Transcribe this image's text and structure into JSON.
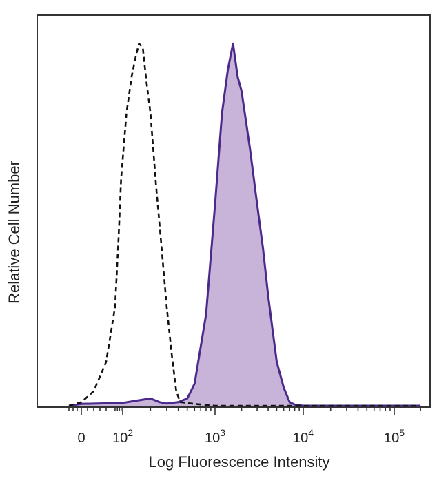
{
  "chart_data": {
    "type": "area",
    "title": "",
    "xlabel": "Log Fluorescence Intensity",
    "ylabel": "Relative Cell Number",
    "x_scale": "biexponential",
    "xlim": [
      -30,
      200000
    ],
    "ylim": [
      0,
      1
    ],
    "grid": false,
    "legend": "none",
    "x_ticks": [
      {
        "value": 0,
        "label": "0"
      },
      {
        "value": 100,
        "label": "10",
        "exp": "2"
      },
      {
        "value": 1000,
        "label": "10",
        "exp": "3"
      },
      {
        "value": 10000,
        "label": "10",
        "exp": "4"
      },
      {
        "value": 100000,
        "label": "10",
        "exp": "5"
      }
    ],
    "series": [
      {
        "style": "dashed-outline",
        "color": "#111111",
        "points": [
          [
            -30,
            0
          ],
          [
            0,
            0.01
          ],
          [
            20,
            0.04
          ],
          [
            40,
            0.12
          ],
          [
            60,
            0.27
          ],
          [
            75,
            0.45
          ],
          [
            90,
            0.62
          ],
          [
            110,
            0.8
          ],
          [
            125,
            0.9
          ],
          [
            140,
            0.96
          ],
          [
            150,
            0.99
          ],
          [
            165,
            0.98
          ],
          [
            180,
            0.89
          ],
          [
            200,
            0.8
          ],
          [
            230,
            0.6
          ],
          [
            260,
            0.45
          ],
          [
            300,
            0.27
          ],
          [
            340,
            0.14
          ],
          [
            380,
            0.04
          ],
          [
            420,
            0.01
          ],
          [
            600,
            0.005
          ],
          [
            1000,
            0
          ],
          [
            200000,
            0
          ]
        ]
      },
      {
        "style": "filled",
        "color": "#4b2a8c",
        "fill": "#c8b3d9",
        "points": [
          [
            -30,
            0
          ],
          [
            0,
            0.005
          ],
          [
            100,
            0.008
          ],
          [
            150,
            0.015
          ],
          [
            200,
            0.02
          ],
          [
            250,
            0.01
          ],
          [
            300,
            0.006
          ],
          [
            400,
            0.01
          ],
          [
            500,
            0.02
          ],
          [
            600,
            0.06
          ],
          [
            800,
            0.25
          ],
          [
            1000,
            0.55
          ],
          [
            1200,
            0.8
          ],
          [
            1400,
            0.92
          ],
          [
            1600,
            0.99
          ],
          [
            1800,
            0.9
          ],
          [
            2000,
            0.86
          ],
          [
            2500,
            0.7
          ],
          [
            3000,
            0.55
          ],
          [
            3500,
            0.43
          ],
          [
            4000,
            0.3
          ],
          [
            5000,
            0.12
          ],
          [
            6000,
            0.05
          ],
          [
            7000,
            0.01
          ],
          [
            8000,
            0.003
          ],
          [
            10000,
            0
          ],
          [
            200000,
            0
          ]
        ]
      }
    ]
  },
  "colors": {
    "frame": "#333333",
    "text": "#222222",
    "control_line": "#111111",
    "stained_line": "#4b2a8c",
    "stained_fill": "#c8b3d9"
  }
}
